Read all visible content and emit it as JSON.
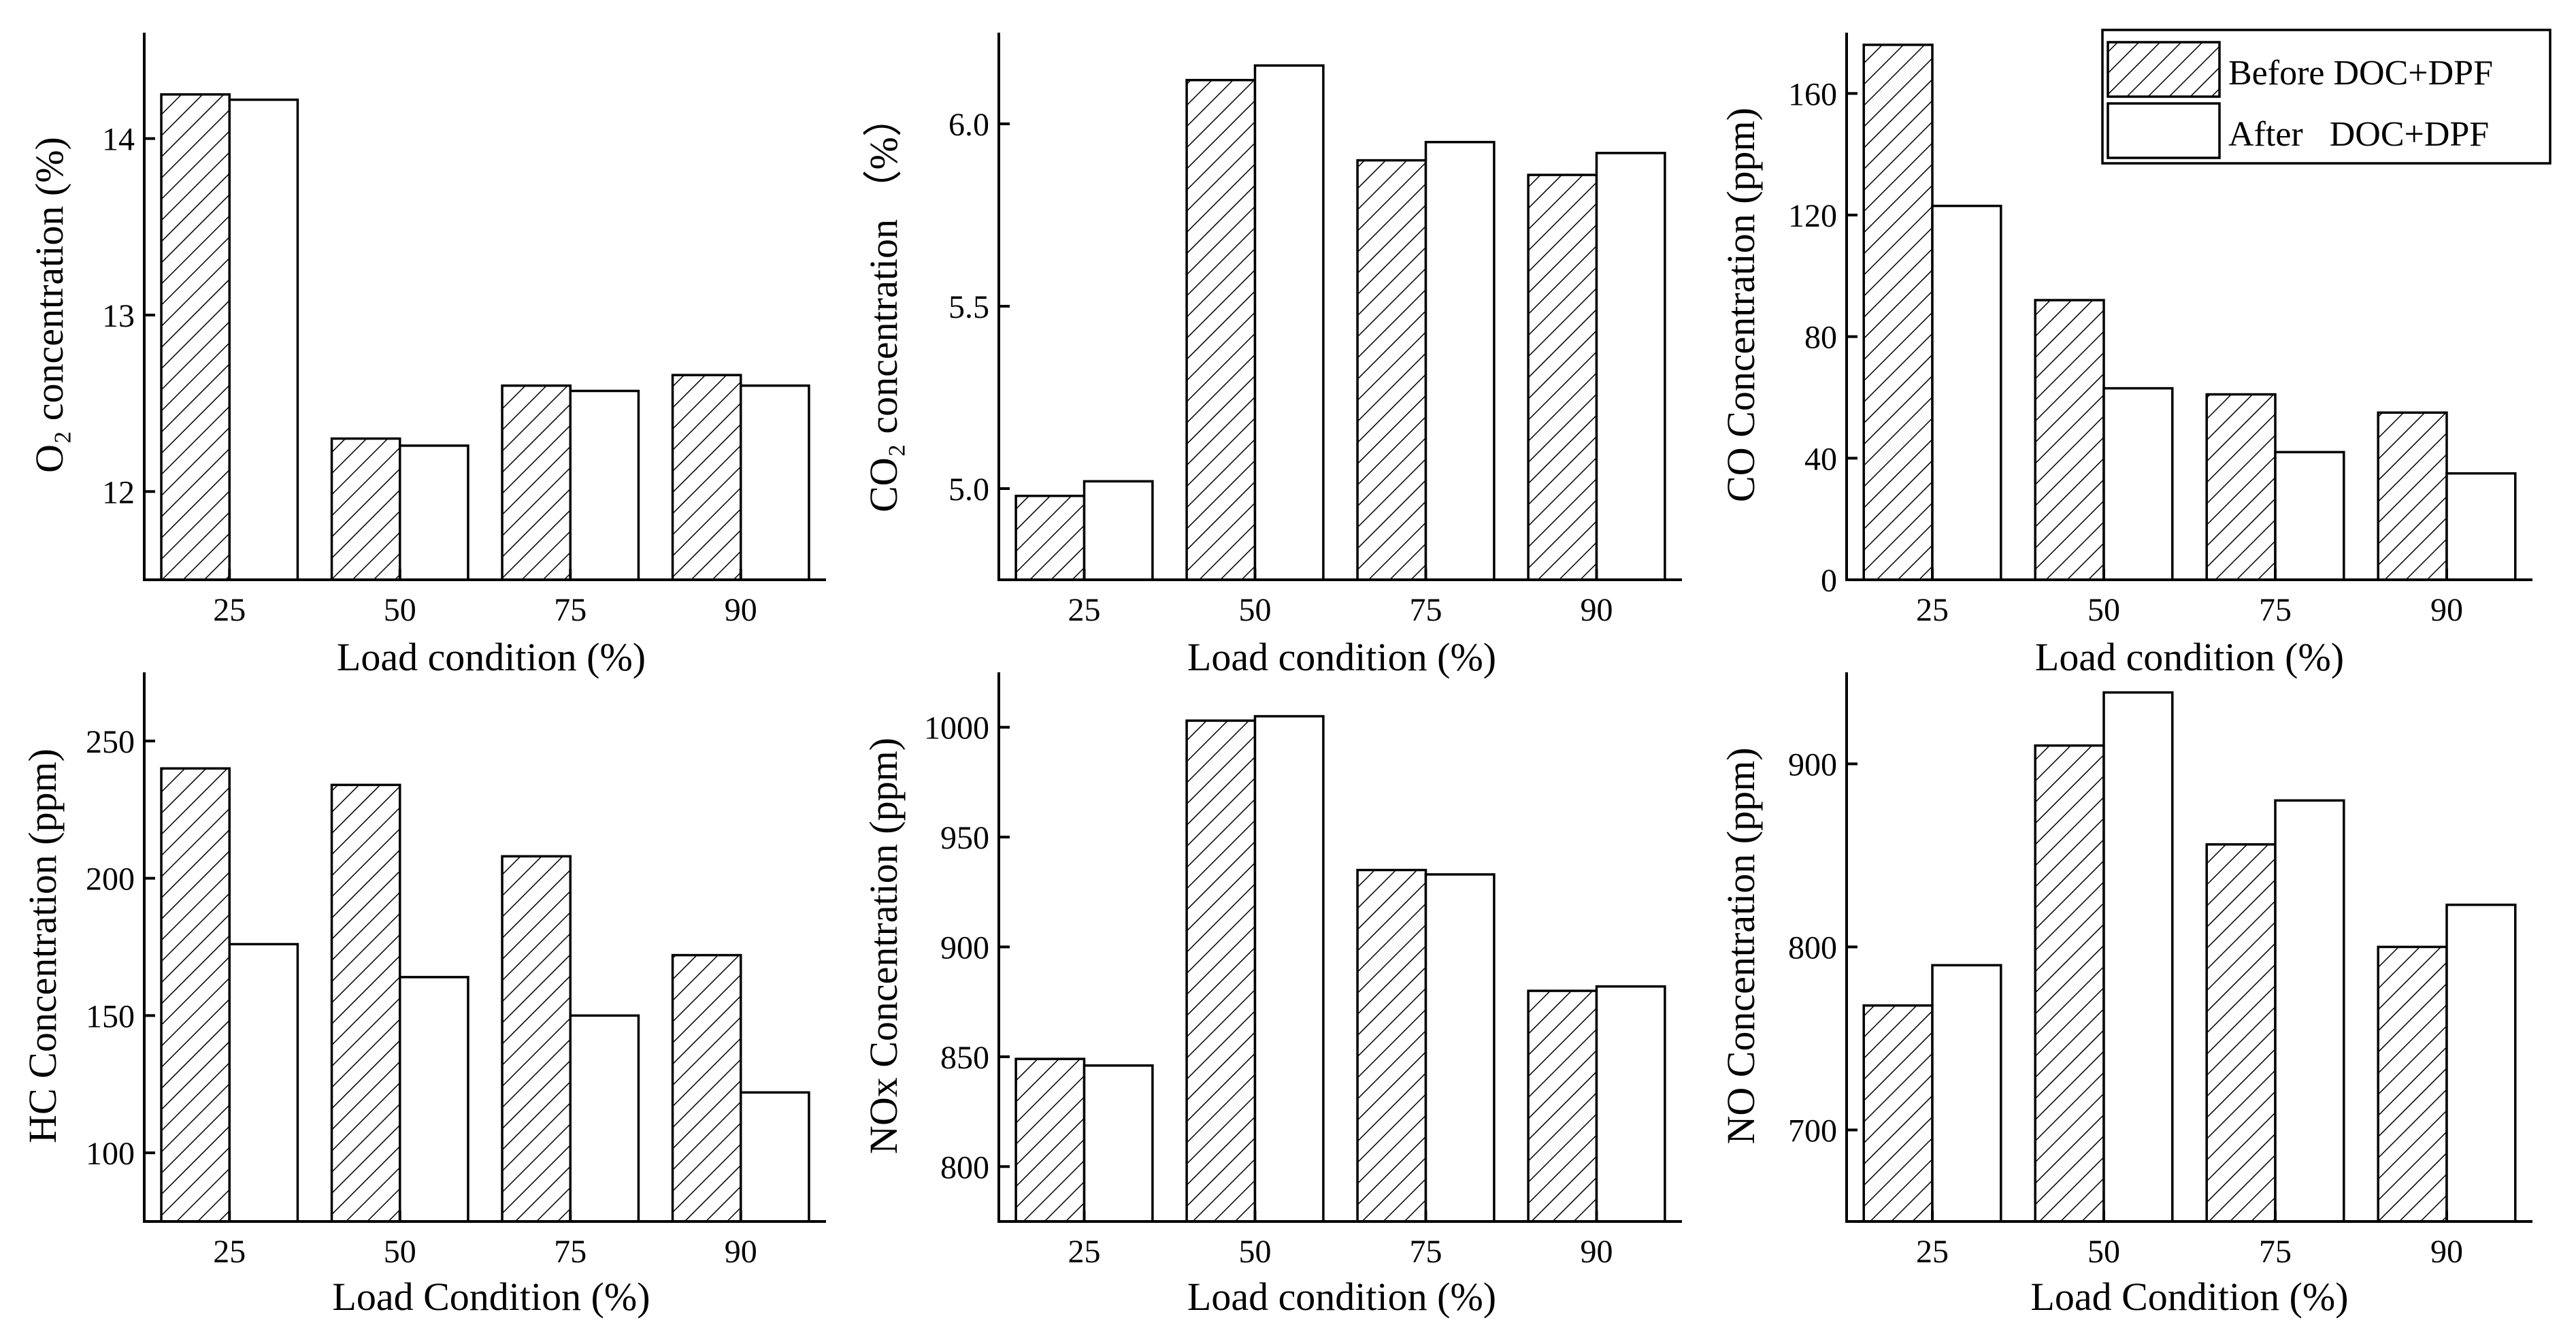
{
  "chart_data": [
    {
      "id": "o2",
      "type": "bar",
      "categories": [
        "25",
        "50",
        "75",
        "90"
      ],
      "series": [
        {
          "name": "Before DOC+DPF",
          "values": [
            14.25,
            12.3,
            12.6,
            12.66
          ]
        },
        {
          "name": "After DOC+DPF",
          "values": [
            14.22,
            12.26,
            12.57,
            12.6
          ]
        }
      ],
      "ylim": [
        11.5,
        14.6
      ],
      "yticks": [
        12,
        13,
        14
      ],
      "ytick_labels": [
        "12",
        "13",
        "14"
      ],
      "ylabel": "O₂ concentration (%)",
      "xlabel": "Load condition (%)"
    },
    {
      "id": "co2",
      "type": "bar",
      "categories": [
        "25",
        "50",
        "75",
        "90"
      ],
      "series": [
        {
          "name": "Before DOC+DPF",
          "values": [
            4.98,
            6.12,
            5.9,
            5.86
          ]
        },
        {
          "name": "After DOC+DPF",
          "values": [
            5.02,
            6.16,
            5.95,
            5.92
          ]
        }
      ],
      "ylim": [
        4.75,
        6.25
      ],
      "yticks": [
        5.0,
        5.5,
        6.0
      ],
      "ytick_labels": [
        "5.0",
        "5.5",
        "6.0"
      ],
      "ylabel": "CO₂ concentration （%）",
      "xlabel": "Load condition (%)"
    },
    {
      "id": "co",
      "type": "bar",
      "categories": [
        "25",
        "50",
        "75",
        "90"
      ],
      "series": [
        {
          "name": "Before DOC+DPF",
          "values": [
            176,
            92,
            61,
            55
          ]
        },
        {
          "name": "After DOC+DPF",
          "values": [
            123,
            63,
            42,
            35
          ]
        }
      ],
      "ylim": [
        0,
        180
      ],
      "yticks": [
        0,
        40,
        80,
        120,
        160
      ],
      "ytick_labels": [
        "0",
        "40",
        "80",
        "120",
        "160"
      ],
      "ylabel": "CO Concentration (ppm)",
      "xlabel": "Load condition (%)",
      "legend": {
        "position": "top-right",
        "before_label": "Before DOC+DPF",
        "after_label": "After   DOC+DPF"
      }
    },
    {
      "id": "hc",
      "type": "bar",
      "categories": [
        "25",
        "50",
        "75",
        "90"
      ],
      "series": [
        {
          "name": "Before DOC+DPF",
          "values": [
            240,
            234,
            208,
            172
          ]
        },
        {
          "name": "After DOC+DPF",
          "values": [
            176,
            164,
            150,
            122
          ]
        }
      ],
      "ylim": [
        75,
        275
      ],
      "yticks": [
        100,
        150,
        200,
        250
      ],
      "ytick_labels": [
        "100",
        "150",
        "200",
        "250"
      ],
      "ylabel": "HC Concentration (ppm)",
      "xlabel": "Load Condition (%)"
    },
    {
      "id": "nox",
      "type": "bar",
      "categories": [
        "25",
        "50",
        "75",
        "90"
      ],
      "series": [
        {
          "name": "Before DOC+DPF",
          "values": [
            849,
            1003,
            935,
            880
          ]
        },
        {
          "name": "After DOC+DPF",
          "values": [
            846,
            1005,
            933,
            882
          ]
        }
      ],
      "ylim": [
        775,
        1025
      ],
      "yticks": [
        800,
        850,
        900,
        950,
        1000
      ],
      "ytick_labels": [
        "800",
        "850",
        "900",
        "950",
        "1000"
      ],
      "ylabel": "NOx Concentration (ppm)",
      "xlabel": "Load condition (%)"
    },
    {
      "id": "no",
      "type": "bar",
      "categories": [
        "25",
        "50",
        "75",
        "90"
      ],
      "series": [
        {
          "name": "Before DOC+DPF",
          "values": [
            768,
            910,
            856,
            800
          ]
        },
        {
          "name": "After DOC+DPF",
          "values": [
            790,
            939,
            880,
            823
          ]
        }
      ],
      "ylim": [
        650,
        950
      ],
      "yticks": [
        700,
        800,
        900
      ],
      "ytick_labels": [
        "700",
        "800",
        "900"
      ],
      "ylabel": "NO Concentration (ppm)",
      "xlabel": "Load Condition (%)"
    }
  ],
  "colors": {
    "axis": "#000000",
    "hatch": "#000000",
    "after_fill": "#ffffff",
    "background": "#ffffff"
  }
}
